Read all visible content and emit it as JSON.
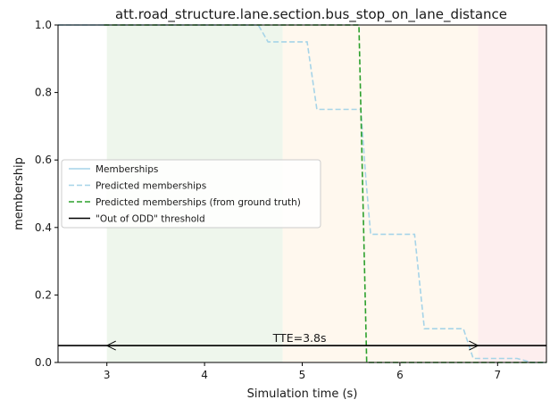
{
  "chart_data": {
    "type": "line",
    "title": "att.road_structure.lane.section.bus_stop_on_lane_distance",
    "xlabel": "Simulation time (s)",
    "ylabel": "membership",
    "xlim": [
      2.5,
      7.5
    ],
    "ylim": [
      0.0,
      1.0
    ],
    "xticks": [
      3,
      4,
      5,
      6,
      7
    ],
    "yticks": [
      0.0,
      0.2,
      0.4,
      0.6,
      0.8,
      1.0
    ],
    "xtick_labels": [
      "3",
      "4",
      "5",
      "6",
      "7"
    ],
    "ytick_labels": [
      "0.0",
      "0.2",
      "0.4",
      "0.6",
      "0.8",
      "1.0"
    ],
    "grid": false,
    "legend_position": "center-left",
    "background_regions": [
      {
        "x0": 2.5,
        "x1": 3.0,
        "color": "#ffffff"
      },
      {
        "x0": 3.0,
        "x1": 4.8,
        "color": "#eef6ec"
      },
      {
        "x0": 4.8,
        "x1": 6.8,
        "color": "#fff8ee"
      },
      {
        "x0": 6.8,
        "x1": 7.5,
        "color": "#fdeeee"
      }
    ],
    "series": [
      {
        "name": "Memberships",
        "style": "solid",
        "color": "#a6d4e8",
        "x": [
          2.5,
          3.0
        ],
        "y": [
          1.0,
          1.0
        ]
      },
      {
        "name": "Predicted memberships",
        "style": "dashed",
        "color": "#a6d4e8",
        "x": [
          2.5,
          4.55,
          4.65,
          4.75,
          5.05,
          5.15,
          5.6,
          5.65,
          5.7,
          6.15,
          6.25,
          6.65,
          6.75,
          7.2,
          7.35,
          7.5
        ],
        "y": [
          1.0,
          1.0,
          0.95,
          0.95,
          0.95,
          0.75,
          0.75,
          0.55,
          0.38,
          0.38,
          0.1,
          0.1,
          0.012,
          0.012,
          0.0,
          0.0
        ]
      },
      {
        "name": "Predicted memberships (from ground truth)",
        "style": "dashed",
        "color": "#2ca02c",
        "x": [
          2.97,
          5.58,
          5.66,
          7.5
        ],
        "y": [
          1.0,
          1.0,
          0.0,
          0.0
        ]
      },
      {
        "name": "\"Out of ODD\" threshold",
        "style": "solid",
        "color": "#000000",
        "x": [
          2.5,
          7.5
        ],
        "y": [
          0.05,
          0.05
        ]
      }
    ],
    "annotations": [
      {
        "text": "TTE=3.8s",
        "x_start": 3.0,
        "x_end": 6.8,
        "y": 0.05,
        "arrow": "double"
      }
    ]
  }
}
